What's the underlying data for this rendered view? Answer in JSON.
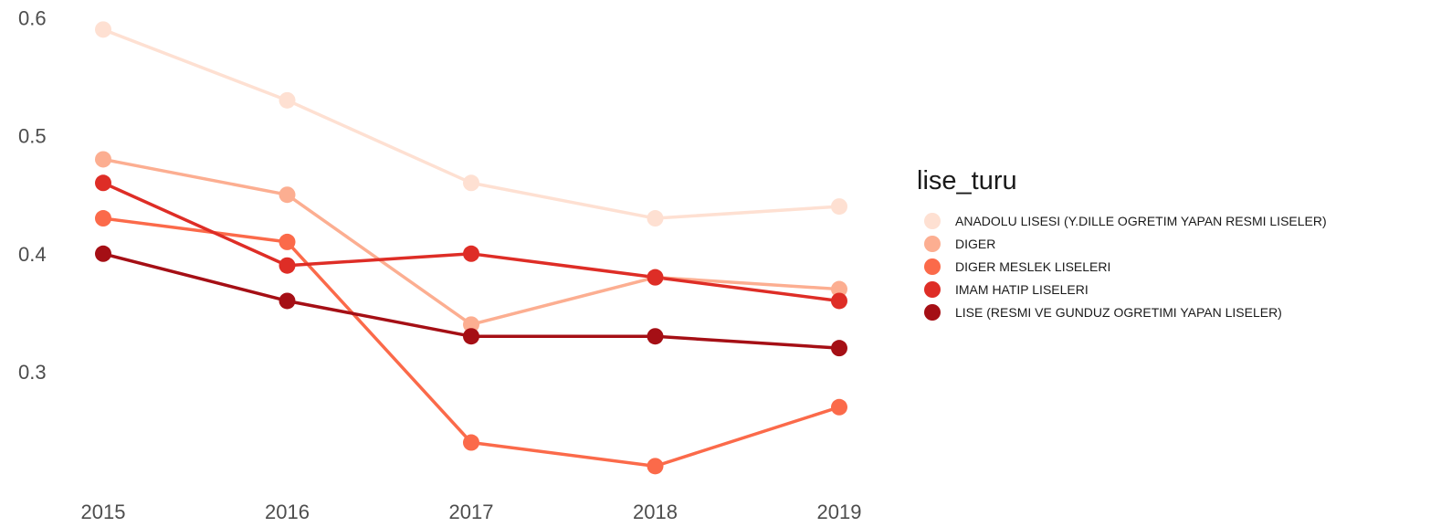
{
  "chart_data": {
    "type": "line",
    "x": [
      "2015",
      "2016",
      "2017",
      "2018",
      "2019"
    ],
    "ylim": [
      0.2,
      0.6
    ],
    "yticks": [
      "0.3",
      "0.4",
      "0.5",
      "0.6"
    ],
    "grid": false,
    "legend": {
      "title": "lise_turu",
      "placement": "right"
    },
    "series": [
      {
        "name": "ANADOLU LISESI (Y.DILLE OGRETIM YAPAN RESMI LISELER)",
        "color": "#fee0d2",
        "values": [
          0.59,
          0.53,
          0.46,
          0.43,
          0.44
        ]
      },
      {
        "name": "DIGER",
        "color": "#fcae91",
        "values": [
          0.48,
          0.45,
          0.34,
          0.38,
          0.37
        ]
      },
      {
        "name": "DIGER MESLEK LISELERI",
        "color": "#fb6a4a",
        "values": [
          0.43,
          0.41,
          0.24,
          0.22,
          0.27
        ]
      },
      {
        "name": "IMAM HATIP LISELERI",
        "color": "#de2d26",
        "values": [
          0.46,
          0.39,
          0.4,
          0.38,
          0.36
        ]
      },
      {
        "name": "LISE (RESMI VE GUNDUZ OGRETIMI YAPAN LISELER)",
        "color": "#a50f15",
        "values": [
          0.4,
          0.36,
          0.33,
          0.33,
          0.32
        ]
      }
    ]
  }
}
